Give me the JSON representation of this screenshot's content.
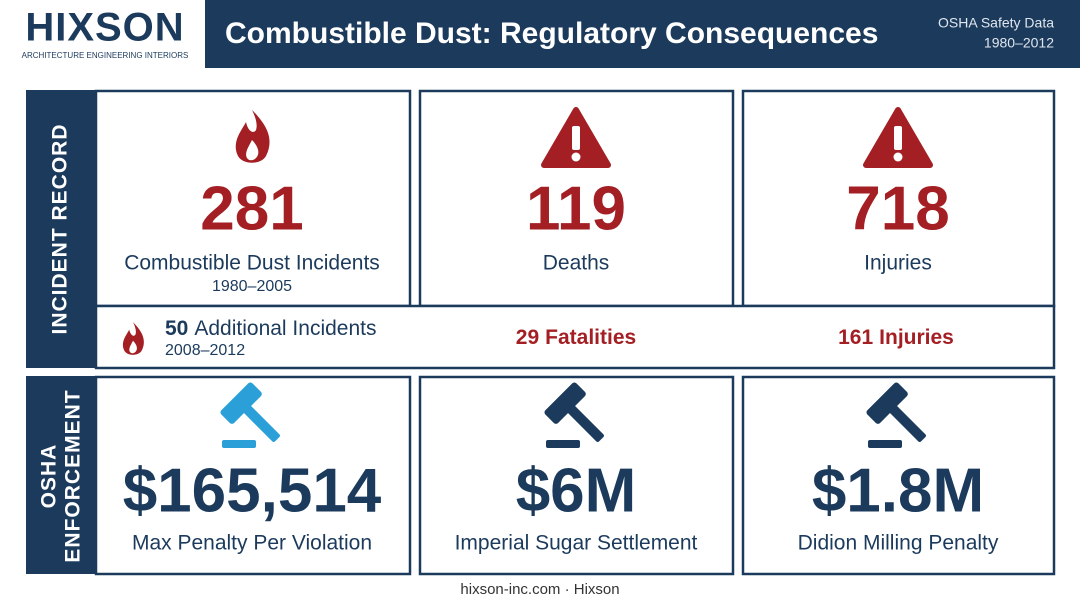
{
  "header": {
    "logo": "HIXSON",
    "logo_tagline": "ARCHITECTURE ENGINEERING INTERIORS",
    "title": "Combustible Dust: Regulatory Consequences",
    "source": "OSHA Safety Data",
    "period": "1980–2012"
  },
  "incident_record": {
    "label": "INCIDENT RECORD",
    "cards": [
      {
        "value": "281",
        "label": "Combustible Dust Incidents",
        "sublabel": "1980–2005"
      },
      {
        "value": "119",
        "label": "Deaths"
      },
      {
        "value": "718",
        "label": "Injuries"
      }
    ],
    "recent": {
      "incidents_value": "50",
      "incidents_label": "Additional Incidents",
      "period": "2008–2012",
      "fatalities_value": "29",
      "fatalities_label": "Fatalities",
      "injuries_value": "161",
      "injuries_label": "Injuries"
    }
  },
  "osha_enforcement": {
    "label_lines": [
      "OSHA",
      "ENFORCEMENT"
    ],
    "cards": [
      {
        "value": "$165,514",
        "label": "Max Penalty Per Violation"
      },
      {
        "value": "$6M",
        "label": "Imperial Sugar Settlement"
      },
      {
        "value": "$1.8M",
        "label": "Didion Milling Penalty"
      }
    ]
  },
  "footer": "hixson-inc.com · Hixson"
}
